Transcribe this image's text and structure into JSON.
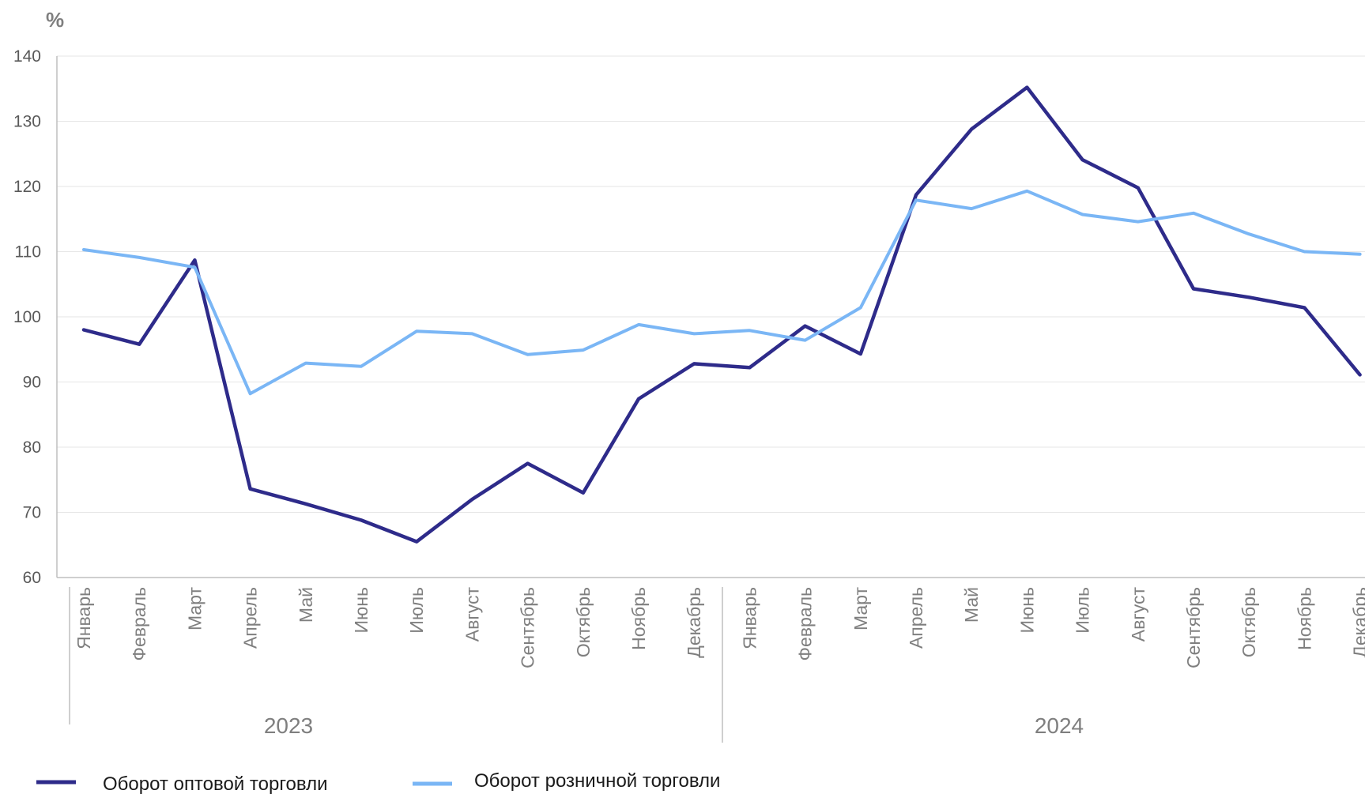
{
  "chart_data": {
    "type": "line",
    "ylabel": "%",
    "ylim": [
      60,
      140
    ],
    "yticks": [
      60,
      70,
      80,
      90,
      100,
      110,
      120,
      130,
      140
    ],
    "grid": true,
    "categories": [
      "Январь",
      "Февраль",
      "Март",
      "Апрель",
      "Май",
      "Июнь",
      "Июль",
      "Август",
      "Сентябрь",
      "Октябрь",
      "Ноябрь",
      "Декабрь",
      "Январь",
      "Февраль",
      "Март",
      "Апрель",
      "Май",
      "Июнь",
      "Июль",
      "Август",
      "Сентябрь",
      "Октябрь",
      "Ноябрь",
      "Декабрь"
    ],
    "groups": [
      {
        "label": "2023",
        "start": 0,
        "end": 11
      },
      {
        "label": "2024",
        "start": 12,
        "end": 23
      }
    ],
    "series": [
      {
        "name": "Оборот  оптовой торговли",
        "color": "#2e2b8a",
        "values": [
          98.0,
          95.8,
          108.7,
          73.6,
          71.3,
          68.8,
          65.5,
          72.0,
          77.5,
          73.0,
          87.4,
          92.8,
          92.2,
          98.6,
          94.3,
          118.7,
          128.8,
          135.2,
          124.1,
          119.8,
          104.3,
          103.0,
          101.4,
          91.1
        ]
      },
      {
        "name": "Оборот розничной торговли",
        "color": "#7ab6f5",
        "values": [
          110.3,
          109.1,
          107.6,
          88.2,
          92.9,
          92.4,
          97.8,
          97.4,
          94.2,
          94.9,
          98.8,
          97.4,
          97.9,
          96.4,
          101.4,
          117.9,
          116.6,
          119.3,
          115.7,
          114.6,
          115.9,
          112.7,
          110.0,
          109.6
        ]
      }
    ],
    "legend_position": "bottom-left"
  }
}
